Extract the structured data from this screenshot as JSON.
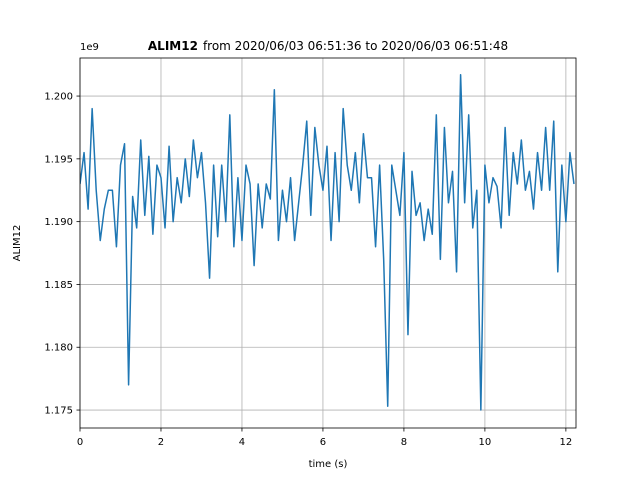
{
  "chart_data": {
    "type": "line",
    "title_bold": "ALIM12",
    "title_rest": "from 2020/06/03 06:51:36 to 2020/06/03 06:51:48",
    "offset_text": "1e9",
    "xlabel": "time (s)",
    "ylabel": "ALIM12",
    "xlim": [
      0,
      12.25
    ],
    "xticks": [
      0,
      2,
      4,
      6,
      8,
      10,
      12
    ],
    "ylim": [
      1.17357,
      1.20303
    ],
    "yticks": [
      1.175,
      {
        "value": 1.18,
        "label": "1.180"
      },
      1.185,
      {
        "value": 1.19,
        "label": "1.190"
      },
      1.195,
      {
        "value": 1.2,
        "label": "1.200"
      }
    ],
    "grid": true,
    "series": [
      {
        "name": "ALIM12",
        "color": "#1f77b4",
        "x": [
          0,
          0.1,
          0.2,
          0.3,
          0.4,
          0.5,
          0.6,
          0.7,
          0.8,
          0.9,
          1,
          1.1,
          1.2,
          1.3,
          1.4,
          1.5,
          1.6,
          1.7,
          1.8,
          1.9,
          2,
          2.1,
          2.2,
          2.3,
          2.4,
          2.5,
          2.6,
          2.7,
          2.8,
          2.9,
          3,
          3.1,
          3.2,
          3.3,
          3.4,
          3.5,
          3.6,
          3.7,
          3.8,
          3.9,
          4,
          4.1,
          4.2,
          4.3,
          4.4,
          4.5,
          4.6,
          4.7,
          4.8,
          4.9,
          5,
          5.1,
          5.2,
          5.3,
          5.4,
          5.5,
          5.6,
          5.7,
          5.8,
          5.9,
          6,
          6.1,
          6.2,
          6.3,
          6.4,
          6.5,
          6.6,
          6.7,
          6.8,
          6.9,
          7,
          7.1,
          7.2,
          7.3,
          7.4,
          7.5,
          7.6,
          7.7,
          7.8,
          7.9,
          8,
          8.1,
          8.2,
          8.3,
          8.4,
          8.5,
          8.6,
          8.7,
          8.8,
          8.9,
          9,
          9.1,
          9.2,
          9.3,
          9.4,
          9.5,
          9.6,
          9.7,
          9.8,
          9.9,
          10,
          10.1,
          10.2,
          10.3,
          10.4,
          10.5,
          10.6,
          10.7,
          10.8,
          10.9,
          11,
          11.1,
          11.2,
          11.3,
          11.4,
          11.5,
          11.6,
          11.7,
          11.8,
          11.9,
          12,
          12.1,
          12.2
        ],
        "values": [
          1.193,
          1.1955,
          1.191,
          1.199,
          1.1925,
          1.1885,
          1.191,
          1.1925,
          1.1925,
          1.188,
          1.1945,
          1.1962,
          1.177,
          1.192,
          1.1895,
          1.1965,
          1.1905,
          1.1952,
          1.189,
          1.1945,
          1.1935,
          1.1895,
          1.196,
          1.19,
          1.1935,
          1.1915,
          1.195,
          1.192,
          1.1965,
          1.1935,
          1.1955,
          1.1915,
          1.1855,
          1.1945,
          1.1888,
          1.1945,
          1.19,
          1.1985,
          1.188,
          1.1935,
          1.1885,
          1.1945,
          1.193,
          1.1865,
          1.193,
          1.1895,
          1.193,
          1.1918,
          1.2005,
          1.1885,
          1.1925,
          1.19,
          1.1935,
          1.1885,
          1.1915,
          1.1945,
          1.198,
          1.1905,
          1.1975,
          1.1945,
          1.1925,
          1.196,
          1.1885,
          1.1955,
          1.19,
          1.199,
          1.1945,
          1.1925,
          1.1955,
          1.1915,
          1.197,
          1.1935,
          1.1935,
          1.188,
          1.1945,
          1.187,
          1.1753,
          1.1945,
          1.1925,
          1.1905,
          1.1955,
          1.181,
          1.194,
          1.1905,
          1.1915,
          1.1885,
          1.191,
          1.189,
          1.1985,
          1.187,
          1.1975,
          1.1915,
          1.194,
          1.186,
          1.2017,
          1.1915,
          1.1985,
          1.1895,
          1.1925,
          1.175,
          1.1945,
          1.1915,
          1.1935,
          1.1928,
          1.1895,
          1.1975,
          1.1905,
          1.1955,
          1.193,
          1.1965,
          1.1925,
          1.194,
          1.191,
          1.1955,
          1.1925,
          1.1975,
          1.1925,
          1.198,
          1.186,
          1.1945,
          1.19,
          1.1955,
          1.193
        ]
      }
    ]
  }
}
